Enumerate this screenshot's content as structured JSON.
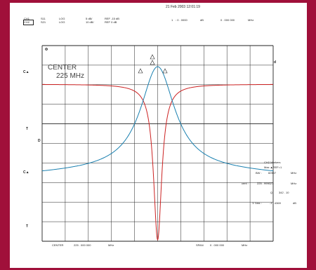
{
  "datetime": "21 Feb 2003  12:01:19",
  "channels": [
    {
      "ch": "CH1",
      "param": "S11",
      "format": "LOG",
      "scale": "5 dB/",
      "ref": "REF -15 dB"
    },
    {
      "ch": "CH2",
      "param": "S21",
      "format": "LOG",
      "scale": "10 dB/",
      "ref": "REF 0 dB"
    }
  ],
  "marker_top": {
    "index": "1",
    "value": ": 0 . 0000",
    "unit": "dB",
    "freq": "0 . 000  000",
    "freq_unit": "MHz"
  },
  "center": {
    "label": "CENTER",
    "value": "225 MHz"
  },
  "markers_panel": {
    "title": "CH2  Markers",
    "line1": "Max   ▲REF=1",
    "bw_label": "BW :",
    "bw_value": "60907",
    "bw_unit": "MHz",
    "cent_label": "cent :",
    "cent_value": "225 . 999027",
    "cent_unit": "MHz",
    "q_label": "Q:",
    "q_value": "342 . 10",
    "loss_label": "1: loss :",
    "loss_value": "-1 . 4369",
    "loss_unit": "dB"
  },
  "footer": {
    "center_label": "CENTER",
    "center_value": "225 . 000  000",
    "center_unit": "MHz",
    "span_label": "SPAN",
    "span_value": "0 . 000  000",
    "span_unit": "MHz"
  },
  "side_labels": [
    "C▲",
    "C▲",
    "T",
    "T"
  ],
  "colors": {
    "frame": "#a0103a",
    "trace_ch1": "#cc2222",
    "trace_ch2": "#1a80b0",
    "grid": "#222222"
  },
  "chart_data": {
    "type": "line",
    "x_divisions": 10,
    "y_divisions": 10,
    "series": [
      {
        "values": [
          -1.5,
          -1.5,
          -1.5,
          -1.6,
          -1.9,
          -4,
          -40,
          -90,
          -40,
          -4,
          -1.9,
          -1.6,
          -1.5,
          -1.5,
          -1.5
        ]
      },
      {
        "values": [
          -62,
          -55,
          -46,
          -37,
          -26,
          -12,
          -2,
          -1.4,
          -2,
          -12,
          -26,
          -37,
          -46,
          -55,
          -62
        ]
      }
    ]
  }
}
